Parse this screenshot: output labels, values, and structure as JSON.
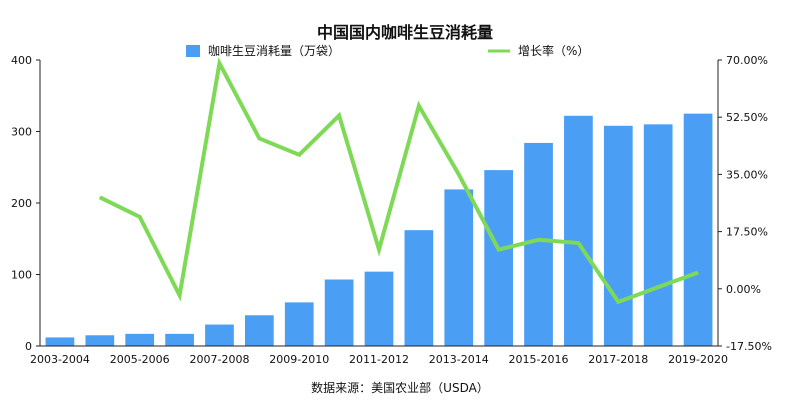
{
  "chart_data": {
    "type": "bar+line",
    "title": "中国国内咖啡生豆消耗量",
    "categories": [
      "2003-2004",
      "2004-2005",
      "2005-2006",
      "2006-2007",
      "2007-2008",
      "2008-2009",
      "2009-2010",
      "2010-2011",
      "2011-2012",
      "2012-2013",
      "2013-2014",
      "2014-2015",
      "2015-2016",
      "2016-2017",
      "2017-2018",
      "2018-2019",
      "2019-2020"
    ],
    "x_tick_labels": [
      "2003-2004",
      "2005-2006",
      "2007-2008",
      "2009-2010",
      "2011-2012",
      "2013-2014",
      "2015-2016",
      "2017-2018",
      "2019-2020"
    ],
    "series": [
      {
        "name": "咖啡生豆消耗量（万袋）",
        "type": "bar",
        "axis": "left",
        "color": "#4a9ff5",
        "values": [
          12,
          15,
          17,
          17,
          30,
          43,
          61,
          93,
          104,
          162,
          219,
          246,
          284,
          322,
          308,
          310,
          325
        ]
      },
      {
        "name": "增长率（%）",
        "type": "line",
        "axis": "right",
        "color": "#7ed957",
        "values": [
          null,
          28,
          22,
          -2,
          69,
          46,
          41,
          53,
          12,
          56,
          35,
          12,
          15,
          14,
          -4,
          0.5,
          5
        ]
      }
    ],
    "y_left": {
      "ylim": [
        0,
        400
      ],
      "ticks": [
        0,
        100,
        200,
        300,
        400
      ],
      "tick_labels": [
        "0",
        "100",
        "200",
        "300",
        "400"
      ]
    },
    "y_right": {
      "ylim": [
        -17.5,
        70
      ],
      "ticks": [
        -17.5,
        0,
        17.5,
        35,
        52.5,
        70
      ],
      "tick_labels": [
        "-17.50%",
        "0.00%",
        "17.50%",
        "35.00%",
        "52.50%",
        "70.00%"
      ]
    },
    "legend_position": "top",
    "grid": false,
    "source": "数据来源：美国农业部（USDA）"
  }
}
